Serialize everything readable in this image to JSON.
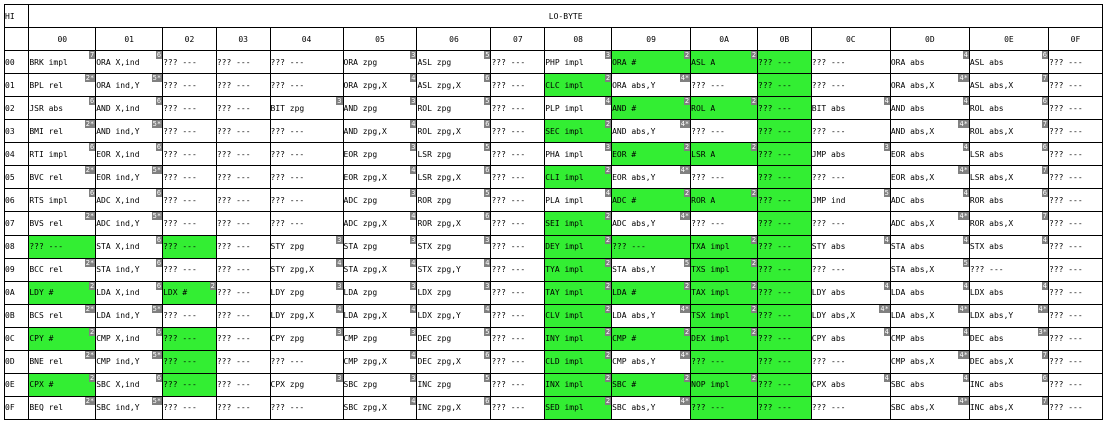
{
  "header": {
    "corner": "HI",
    "title": "LO-BYTE"
  },
  "columns": [
    "00",
    "01",
    "02",
    "03",
    "04",
    "05",
    "06",
    "07",
    "08",
    "09",
    "0A",
    "0B",
    "0C",
    "0D",
    "0E",
    "0F"
  ],
  "highlight_color": "#33ee33",
  "badge_color": "#808080",
  "rows": [
    {
      "label": "00",
      "cells": [
        {
          "t": "BRK impl",
          "b": "7"
        },
        {
          "t": "ORA X,ind",
          "b": "6"
        },
        {
          "t": "??? ---"
        },
        {
          "t": "??? ---"
        },
        {
          "t": "??? ---"
        },
        {
          "t": "ORA zpg",
          "b": "3"
        },
        {
          "t": "ASL zpg",
          "b": "5"
        },
        {
          "t": "??? ---"
        },
        {
          "t": "PHP impl",
          "b": "3"
        },
        {
          "t": "ORA #",
          "b": "2",
          "h": true
        },
        {
          "t": "ASL A",
          "b": "2",
          "h": true
        },
        {
          "t": "??? ---",
          "h": true
        },
        {
          "t": "??? ---"
        },
        {
          "t": "ORA abs",
          "b": "4"
        },
        {
          "t": "ASL abs",
          "b": "6"
        },
        {
          "t": "??? ---"
        }
      ]
    },
    {
      "label": "01",
      "cells": [
        {
          "t": "BPL rel",
          "b": "2*"
        },
        {
          "t": "ORA ind,Y",
          "b": "5*"
        },
        {
          "t": "??? ---"
        },
        {
          "t": "??? ---"
        },
        {
          "t": "??? ---"
        },
        {
          "t": "ORA zpg,X",
          "b": "4"
        },
        {
          "t": "ASL zpg,X",
          "b": "6"
        },
        {
          "t": "??? ---"
        },
        {
          "t": "CLC impl",
          "b": "2",
          "h": true
        },
        {
          "t": "ORA abs,Y",
          "b": "4*"
        },
        {
          "t": "??? ---"
        },
        {
          "t": "??? ---",
          "h": true
        },
        {
          "t": "??? ---"
        },
        {
          "t": "ORA abs,X",
          "b": "4*"
        },
        {
          "t": "ASL abs,X",
          "b": "7"
        },
        {
          "t": "??? ---"
        }
      ]
    },
    {
      "label": "02",
      "cells": [
        {
          "t": "JSR abs",
          "b": "6"
        },
        {
          "t": "AND X,ind",
          "b": "6"
        },
        {
          "t": "??? ---"
        },
        {
          "t": "??? ---"
        },
        {
          "t": "BIT zpg",
          "b": "3"
        },
        {
          "t": "AND zpg",
          "b": "3"
        },
        {
          "t": "ROL zpg",
          "b": "5"
        },
        {
          "t": "??? ---"
        },
        {
          "t": "PLP impl",
          "b": "4"
        },
        {
          "t": "AND #",
          "b": "2",
          "h": true
        },
        {
          "t": "ROL A",
          "b": "2",
          "h": true
        },
        {
          "t": "??? ---",
          "h": true
        },
        {
          "t": "BIT abs",
          "b": "4"
        },
        {
          "t": "AND abs",
          "b": "4"
        },
        {
          "t": "ROL abs",
          "b": "6"
        },
        {
          "t": "??? ---"
        }
      ]
    },
    {
      "label": "03",
      "cells": [
        {
          "t": "BMI rel",
          "b": "2*"
        },
        {
          "t": "AND ind,Y",
          "b": "5*"
        },
        {
          "t": "??? ---"
        },
        {
          "t": "??? ---"
        },
        {
          "t": "??? ---"
        },
        {
          "t": "AND zpg,X",
          "b": "4"
        },
        {
          "t": "ROL zpg,X",
          "b": "6"
        },
        {
          "t": "??? ---"
        },
        {
          "t": "SEC impl",
          "b": "2",
          "h": true
        },
        {
          "t": "AND abs,Y",
          "b": "4*"
        },
        {
          "t": "??? ---"
        },
        {
          "t": "??? ---",
          "h": true
        },
        {
          "t": "??? ---"
        },
        {
          "t": "AND abs,X",
          "b": "4*"
        },
        {
          "t": "ROL abs,X",
          "b": "7"
        },
        {
          "t": "??? ---"
        }
      ]
    },
    {
      "label": "04",
      "cells": [
        {
          "t": "RTI impl",
          "b": "6"
        },
        {
          "t": "EOR X,ind",
          "b": "6"
        },
        {
          "t": "??? ---"
        },
        {
          "t": "??? ---"
        },
        {
          "t": "??? ---"
        },
        {
          "t": "EOR zpg",
          "b": "3"
        },
        {
          "t": "LSR zpg",
          "b": "5"
        },
        {
          "t": "??? ---"
        },
        {
          "t": "PHA impl",
          "b": "3"
        },
        {
          "t": "EOR #",
          "b": "2",
          "h": true
        },
        {
          "t": "LSR A",
          "b": "2",
          "h": true
        },
        {
          "t": "??? ---",
          "h": true
        },
        {
          "t": "JMP abs",
          "b": "3"
        },
        {
          "t": "EOR abs",
          "b": "4"
        },
        {
          "t": "LSR abs",
          "b": "6"
        },
        {
          "t": "??? ---"
        }
      ]
    },
    {
      "label": "05",
      "cells": [
        {
          "t": "BVC rel",
          "b": "2*"
        },
        {
          "t": "EOR ind,Y",
          "b": "5*"
        },
        {
          "t": "??? ---"
        },
        {
          "t": "??? ---"
        },
        {
          "t": "??? ---"
        },
        {
          "t": "EOR zpg,X",
          "b": "4"
        },
        {
          "t": "LSR zpg,X",
          "b": "6"
        },
        {
          "t": "??? ---"
        },
        {
          "t": "CLI impl",
          "b": "2",
          "h": true
        },
        {
          "t": "EOR abs,Y",
          "b": "4*"
        },
        {
          "t": "??? ---"
        },
        {
          "t": "??? ---",
          "h": true
        },
        {
          "t": "??? ---"
        },
        {
          "t": "EOR abs,X",
          "b": "4*"
        },
        {
          "t": "LSR abs,X",
          "b": "7"
        },
        {
          "t": "??? ---"
        }
      ]
    },
    {
      "label": "06",
      "cells": [
        {
          "t": "RTS impl",
          "b": "6"
        },
        {
          "t": "ADC X,ind",
          "b": "6"
        },
        {
          "t": "??? ---"
        },
        {
          "t": "??? ---"
        },
        {
          "t": "??? ---"
        },
        {
          "t": "ADC zpg",
          "b": "3"
        },
        {
          "t": "ROR zpg",
          "b": "5"
        },
        {
          "t": "??? ---"
        },
        {
          "t": "PLA impl",
          "b": "4"
        },
        {
          "t": "ADC #",
          "b": "2",
          "h": true
        },
        {
          "t": "ROR A",
          "b": "2",
          "h": true
        },
        {
          "t": "??? ---",
          "h": true
        },
        {
          "t": "JMP ind",
          "b": "5"
        },
        {
          "t": "ADC abs",
          "b": "4"
        },
        {
          "t": "ROR abs",
          "b": "6"
        },
        {
          "t": "??? ---"
        }
      ]
    },
    {
      "label": "07",
      "cells": [
        {
          "t": "BVS rel",
          "b": "2*"
        },
        {
          "t": "ADC ind,Y",
          "b": "5*"
        },
        {
          "t": "??? ---"
        },
        {
          "t": "??? ---"
        },
        {
          "t": "??? ---"
        },
        {
          "t": "ADC zpg,X",
          "b": "4"
        },
        {
          "t": "ROR zpg,X",
          "b": "6"
        },
        {
          "t": "??? ---"
        },
        {
          "t": "SEI impl",
          "b": "2",
          "h": true
        },
        {
          "t": "ADC abs,Y",
          "b": "4*"
        },
        {
          "t": "??? ---"
        },
        {
          "t": "??? ---",
          "h": true
        },
        {
          "t": "??? ---"
        },
        {
          "t": "ADC abs,X",
          "b": "4*"
        },
        {
          "t": "ROR abs,X",
          "b": "7"
        },
        {
          "t": "??? ---"
        }
      ]
    },
    {
      "label": "08",
      "cells": [
        {
          "t": "??? ---",
          "h": true
        },
        {
          "t": "STA X,ind",
          "b": "6"
        },
        {
          "t": "??? ---",
          "h": true
        },
        {
          "t": "??? ---"
        },
        {
          "t": "STY zpg",
          "b": "3"
        },
        {
          "t": "STA zpg",
          "b": "3"
        },
        {
          "t": "STX zpg",
          "b": "3"
        },
        {
          "t": "??? ---"
        },
        {
          "t": "DEY impl",
          "b": "2",
          "h": true
        },
        {
          "t": "??? ---",
          "h": true
        },
        {
          "t": "TXA impl",
          "b": "2",
          "h": true
        },
        {
          "t": "??? ---",
          "h": true
        },
        {
          "t": "STY abs",
          "b": "4"
        },
        {
          "t": "STA abs",
          "b": "4"
        },
        {
          "t": "STX abs",
          "b": "4"
        },
        {
          "t": "??? ---"
        }
      ]
    },
    {
      "label": "09",
      "cells": [
        {
          "t": "BCC rel",
          "b": "2*"
        },
        {
          "t": "STA ind,Y",
          "b": "6"
        },
        {
          "t": "??? ---"
        },
        {
          "t": "??? ---"
        },
        {
          "t": "STY zpg,X",
          "b": "4"
        },
        {
          "t": "STA zpg,X",
          "b": "4"
        },
        {
          "t": "STX zpg,Y",
          "b": "4"
        },
        {
          "t": "??? ---"
        },
        {
          "t": "TYA impl",
          "b": "2",
          "h": true
        },
        {
          "t": "STA abs,Y",
          "b": "5"
        },
        {
          "t": "TXS impl",
          "b": "2",
          "h": true
        },
        {
          "t": "??? ---",
          "h": true
        },
        {
          "t": "??? ---"
        },
        {
          "t": "STA abs,X",
          "b": "5"
        },
        {
          "t": "??? ---"
        },
        {
          "t": "??? ---"
        }
      ]
    },
    {
      "label": "0A",
      "cells": [
        {
          "t": "LDY #",
          "b": "2",
          "h": true
        },
        {
          "t": "LDA X,ind",
          "b": "6"
        },
        {
          "t": "LDX #",
          "b": "2",
          "h": true
        },
        {
          "t": "??? ---"
        },
        {
          "t": "LDY zpg",
          "b": "3"
        },
        {
          "t": "LDA zpg",
          "b": "3"
        },
        {
          "t": "LDX zpg",
          "b": "3"
        },
        {
          "t": "??? ---"
        },
        {
          "t": "TAY impl",
          "b": "2",
          "h": true
        },
        {
          "t": "LDA #",
          "b": "2",
          "h": true
        },
        {
          "t": "TAX impl",
          "b": "2",
          "h": true
        },
        {
          "t": "??? ---",
          "h": true
        },
        {
          "t": "LDY abs",
          "b": "4"
        },
        {
          "t": "LDA abs",
          "b": "4"
        },
        {
          "t": "LDX abs",
          "b": "4"
        },
        {
          "t": "??? ---"
        }
      ]
    },
    {
      "label": "0B",
      "cells": [
        {
          "t": "BCS rel",
          "b": "2*"
        },
        {
          "t": "LDA ind,Y",
          "b": "5*"
        },
        {
          "t": "??? ---"
        },
        {
          "t": "??? ---"
        },
        {
          "t": "LDY zpg,X",
          "b": "4"
        },
        {
          "t": "LDA zpg,X",
          "b": "4"
        },
        {
          "t": "LDX zpg,Y",
          "b": "4"
        },
        {
          "t": "??? ---"
        },
        {
          "t": "CLV impl",
          "b": "2",
          "h": true
        },
        {
          "t": "LDA abs,Y",
          "b": "4*"
        },
        {
          "t": "TSX impl",
          "b": "2",
          "h": true
        },
        {
          "t": "??? ---",
          "h": true
        },
        {
          "t": "LDY abs,X",
          "b": "4*"
        },
        {
          "t": "LDA abs,X",
          "b": "4*"
        },
        {
          "t": "LDX abs,Y",
          "b": "4*"
        },
        {
          "t": "??? ---"
        }
      ]
    },
    {
      "label": "0C",
      "cells": [
        {
          "t": "CPY #",
          "b": "2",
          "h": true
        },
        {
          "t": "CMP X,ind",
          "b": "6"
        },
        {
          "t": "??? ---",
          "h": true
        },
        {
          "t": "??? ---"
        },
        {
          "t": "CPY zpg",
          "b": "3"
        },
        {
          "t": "CMP zpg",
          "b": "3"
        },
        {
          "t": "DEC zpg",
          "b": "5"
        },
        {
          "t": "??? ---"
        },
        {
          "t": "INY impl",
          "b": "2",
          "h": true
        },
        {
          "t": "CMP #",
          "b": "2",
          "h": true
        },
        {
          "t": "DEX impl",
          "b": "2",
          "h": true
        },
        {
          "t": "??? ---",
          "h": true
        },
        {
          "t": "CPY abs",
          "b": "4"
        },
        {
          "t": "CMP abs",
          "b": "4"
        },
        {
          "t": "DEC abs",
          "b": "3*"
        },
        {
          "t": "??? ---"
        }
      ]
    },
    {
      "label": "0D",
      "cells": [
        {
          "t": "BNE rel",
          "b": "2*"
        },
        {
          "t": "CMP ind,Y",
          "b": "5*"
        },
        {
          "t": "??? ---",
          "h": true
        },
        {
          "t": "??? ---"
        },
        {
          "t": "??? ---"
        },
        {
          "t": "CMP zpg,X",
          "b": "4"
        },
        {
          "t": "DEC zpg,X",
          "b": "6"
        },
        {
          "t": "??? ---"
        },
        {
          "t": "CLD impl",
          "b": "2",
          "h": true
        },
        {
          "t": "CMP abs,Y",
          "b": "4*"
        },
        {
          "t": "??? ---",
          "h": true
        },
        {
          "t": "??? ---",
          "h": true
        },
        {
          "t": "??? ---"
        },
        {
          "t": "CMP abs,X",
          "b": "4*"
        },
        {
          "t": "DEC abs,X",
          "b": "7"
        },
        {
          "t": "??? ---"
        }
      ]
    },
    {
      "label": "0E",
      "cells": [
        {
          "t": "CPX #",
          "b": "2",
          "h": true
        },
        {
          "t": "SBC X,ind",
          "b": "6"
        },
        {
          "t": "??? ---",
          "h": true
        },
        {
          "t": "??? ---"
        },
        {
          "t": "CPX zpg",
          "b": "3"
        },
        {
          "t": "SBC zpg",
          "b": "3"
        },
        {
          "t": "INC zpg",
          "b": "5"
        },
        {
          "t": "??? ---"
        },
        {
          "t": "INX impl",
          "b": "2",
          "h": true
        },
        {
          "t": "SBC #",
          "b": "2",
          "h": true
        },
        {
          "t": "NOP impl",
          "b": "2",
          "h": true
        },
        {
          "t": "??? ---",
          "h": true
        },
        {
          "t": "CPX abs",
          "b": "4"
        },
        {
          "t": "SBC abs",
          "b": "4"
        },
        {
          "t": "INC abs",
          "b": "6"
        },
        {
          "t": "??? ---"
        }
      ]
    },
    {
      "label": "0F",
      "cells": [
        {
          "t": "BEQ rel",
          "b": "2*"
        },
        {
          "t": "SBC ind,Y",
          "b": "5*"
        },
        {
          "t": "??? ---"
        },
        {
          "t": "??? ---"
        },
        {
          "t": "??? ---"
        },
        {
          "t": "SBC zpg,X",
          "b": "4"
        },
        {
          "t": "INC zpg,X",
          "b": "6"
        },
        {
          "t": "??? ---"
        },
        {
          "t": "SED impl",
          "b": "2",
          "h": true
        },
        {
          "t": "SBC abs,Y",
          "b": "4*"
        },
        {
          "t": "??? ---",
          "h": true
        },
        {
          "t": "??? ---",
          "h": true
        },
        {
          "t": "??? ---"
        },
        {
          "t": "SBC abs,X",
          "b": "4*"
        },
        {
          "t": "INC abs,X",
          "b": "7"
        },
        {
          "t": "??? ---"
        }
      ]
    }
  ]
}
